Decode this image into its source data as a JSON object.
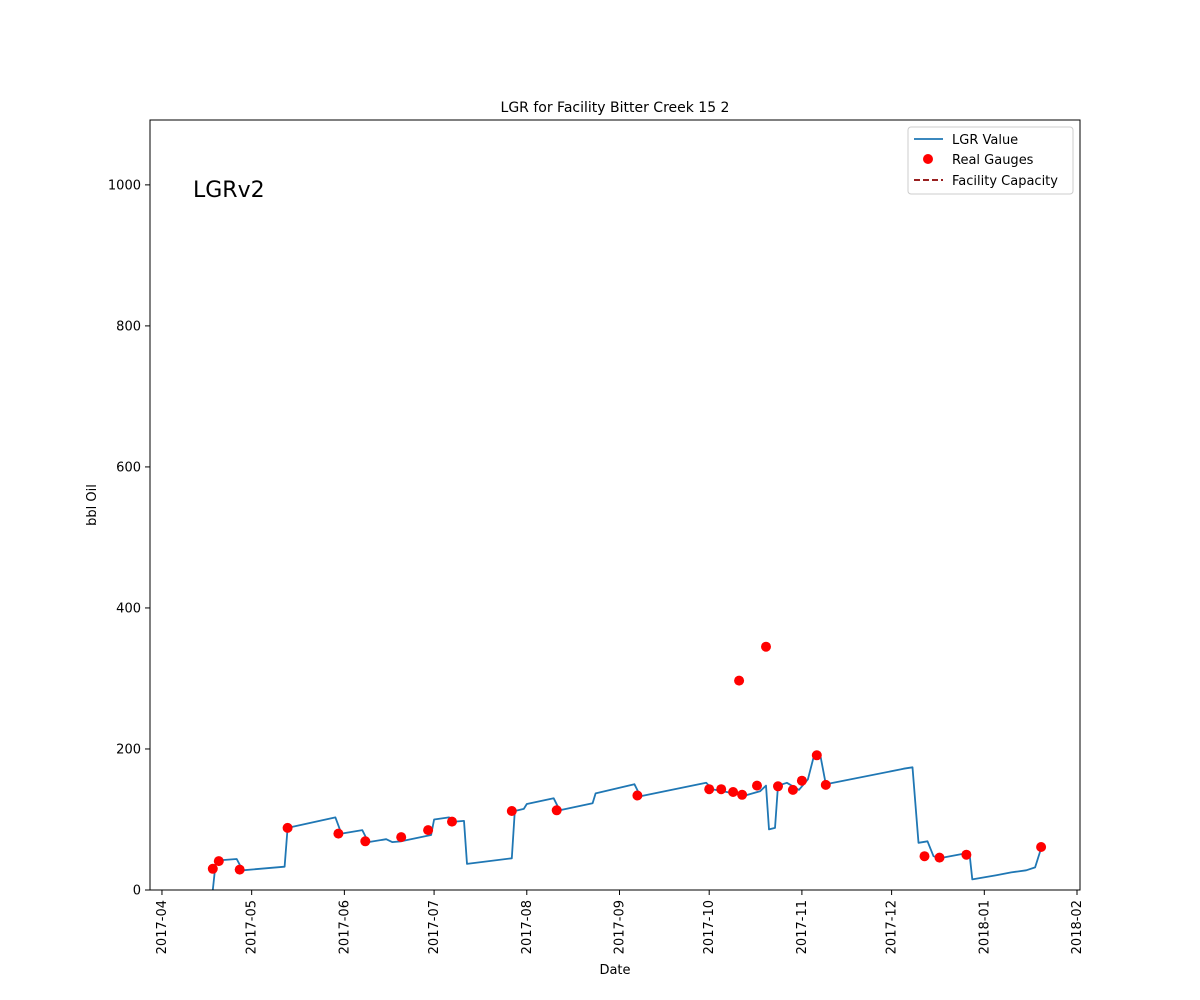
{
  "chart_data": {
    "type": "line",
    "title": "LGR for Facility Bitter Creek 15 2",
    "xlabel": "Date",
    "ylabel": "bbl Oil",
    "annotation": "LGRv2",
    "xlim": [
      "2017-03-28",
      "2018-02-02"
    ],
    "ylim": [
      0,
      1092
    ],
    "x_ticks": [
      "2017-04-01",
      "2017-05-01",
      "2017-06-01",
      "2017-07-01",
      "2017-08-01",
      "2017-09-01",
      "2017-10-01",
      "2017-11-01",
      "2017-12-01",
      "2018-01-01",
      "2018-02-01"
    ],
    "x_tick_labels": [
      "2017-04",
      "2017-05",
      "2017-06",
      "2017-07",
      "2017-08",
      "2017-09",
      "2017-10",
      "2017-11",
      "2017-12",
      "2018-01",
      "2018-02"
    ],
    "y_ticks": [
      0,
      200,
      400,
      600,
      800,
      1000
    ],
    "y_tick_labels": [
      "0",
      "200",
      "400",
      "600",
      "800",
      "1000"
    ],
    "grid": false,
    "legend_position": "top-right",
    "series": [
      {
        "name": "LGR Value",
        "kind": "line",
        "color": "#1f77b4",
        "points": [
          [
            "2017-04-18",
            0
          ],
          [
            "2017-04-19",
            40
          ],
          [
            "2017-04-20",
            42
          ],
          [
            "2017-04-26",
            44
          ],
          [
            "2017-04-28",
            28
          ],
          [
            "2017-05-12",
            33
          ],
          [
            "2017-05-13",
            88
          ],
          [
            "2017-05-29",
            103
          ],
          [
            "2017-05-31",
            80
          ],
          [
            "2017-06-07",
            85
          ],
          [
            "2017-06-09",
            68
          ],
          [
            "2017-06-15",
            72
          ],
          [
            "2017-06-17",
            68
          ],
          [
            "2017-06-20",
            69
          ],
          [
            "2017-06-30",
            78
          ],
          [
            "2017-07-01",
            100
          ],
          [
            "2017-07-06",
            103
          ],
          [
            "2017-07-08",
            97
          ],
          [
            "2017-07-11",
            98
          ],
          [
            "2017-07-12",
            37
          ],
          [
            "2017-07-27",
            45
          ],
          [
            "2017-07-28",
            112
          ],
          [
            "2017-07-31",
            115
          ],
          [
            "2017-08-01",
            122
          ],
          [
            "2017-08-10",
            130
          ],
          [
            "2017-08-12",
            113
          ],
          [
            "2017-08-23",
            123
          ],
          [
            "2017-08-24",
            137
          ],
          [
            "2017-09-06",
            150
          ],
          [
            "2017-09-08",
            133
          ],
          [
            "2017-09-30",
            152
          ],
          [
            "2017-10-02",
            143
          ],
          [
            "2017-10-13",
            134
          ],
          [
            "2017-10-18",
            140
          ],
          [
            "2017-10-20",
            148
          ],
          [
            "2017-10-21",
            86
          ],
          [
            "2017-10-23",
            88
          ],
          [
            "2017-10-24",
            148
          ],
          [
            "2017-10-27",
            152
          ],
          [
            "2017-10-31",
            142
          ],
          [
            "2017-11-03",
            157
          ],
          [
            "2017-11-05",
            190
          ],
          [
            "2017-11-07",
            195
          ],
          [
            "2017-11-09",
            150
          ],
          [
            "2017-12-04",
            171
          ],
          [
            "2017-12-05",
            172
          ],
          [
            "2017-12-08",
            174
          ],
          [
            "2017-12-10",
            67
          ],
          [
            "2017-12-13",
            69
          ],
          [
            "2017-12-15",
            48
          ],
          [
            "2017-12-17",
            45
          ],
          [
            "2017-12-27",
            53
          ],
          [
            "2017-12-28",
            15
          ],
          [
            "2018-01-05",
            21
          ],
          [
            "2018-01-10",
            25
          ],
          [
            "2018-01-15",
            28
          ],
          [
            "2018-01-18",
            32
          ],
          [
            "2018-01-20",
            59
          ]
        ]
      },
      {
        "name": "Real Gauges",
        "kind": "scatter",
        "color": "#ff0000",
        "points": [
          [
            "2017-04-18",
            30
          ],
          [
            "2017-04-20",
            41
          ],
          [
            "2017-04-27",
            29
          ],
          [
            "2017-05-13",
            88
          ],
          [
            "2017-05-30",
            80
          ],
          [
            "2017-06-08",
            69
          ],
          [
            "2017-06-20",
            75
          ],
          [
            "2017-06-29",
            85
          ],
          [
            "2017-07-07",
            97
          ],
          [
            "2017-07-27",
            112
          ],
          [
            "2017-08-11",
            113
          ],
          [
            "2017-09-07",
            134
          ],
          [
            "2017-10-01",
            143
          ],
          [
            "2017-10-05",
            143
          ],
          [
            "2017-10-09",
            139
          ],
          [
            "2017-10-11",
            297
          ],
          [
            "2017-10-12",
            135
          ],
          [
            "2017-10-17",
            148
          ],
          [
            "2017-10-20",
            345
          ],
          [
            "2017-10-24",
            147
          ],
          [
            "2017-10-29",
            142
          ],
          [
            "2017-11-01",
            155
          ],
          [
            "2017-11-06",
            191
          ],
          [
            "2017-11-09",
            149
          ],
          [
            "2017-12-12",
            48
          ],
          [
            "2017-12-17",
            46
          ],
          [
            "2017-12-26",
            50
          ],
          [
            "2018-01-20",
            61
          ]
        ]
      },
      {
        "name": "Facility Capacity",
        "kind": "dashed-line",
        "color": "#8b0000",
        "points": []
      }
    ]
  }
}
